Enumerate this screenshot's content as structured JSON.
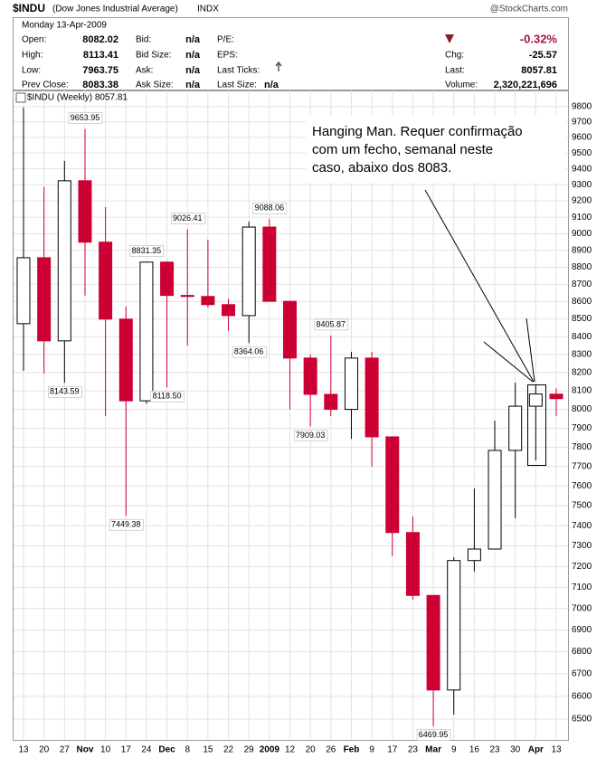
{
  "header": {
    "symbol": "$INDU",
    "name": "(Dow Jones Industrial Average)",
    "exchange": "INDX",
    "source": "@StockCharts.com",
    "date": "Monday  13-Apr-2009",
    "columns": [
      [
        {
          "label": "Open:",
          "value": "8082.02"
        },
        {
          "label": "High:",
          "value": "8113.41"
        },
        {
          "label": "Low:",
          "value": "7963.75"
        },
        {
          "label": "Prev Close:",
          "value": "8083.38"
        }
      ],
      [
        {
          "label": "Bid:",
          "value": "n/a"
        },
        {
          "label": "Bid Size:",
          "value": "n/a"
        },
        {
          "label": "Ask:",
          "value": "n/a"
        },
        {
          "label": "Ask Size:",
          "value": "n/a"
        }
      ],
      [
        {
          "label": "P/E:"
        },
        {
          "label": "EPS:"
        },
        {
          "label": "Last Ticks:"
        },
        {
          "label": "Last Size:",
          "value": "n/a"
        }
      ],
      [
        {
          "value": "-0.32%"
        },
        {
          "label": "Chg:",
          "value": "-25.57"
        },
        {
          "label": "Last:",
          "value": "8057.81"
        },
        {
          "label": "Volume:",
          "value": "2,320,221,696"
        }
      ]
    ]
  },
  "chart_data": {
    "type": "candlestick",
    "legend": "$INDU (Weekly) 8057.81",
    "annotation": [
      "Hanging Man. Requer confirmação",
      "com um fecho, semanal neste",
      "caso, abaixo dos 8083."
    ],
    "categories": [
      "13",
      "20",
      "27",
      "Nov",
      "10",
      "17",
      "24",
      "Dec",
      "8",
      "15",
      "22",
      "29",
      "2009",
      "12",
      "20",
      "26",
      "Feb",
      "9",
      "17",
      "23",
      "Mar",
      "9",
      "16",
      "23",
      "30",
      "Apr",
      "13"
    ],
    "open": [
      8473,
      8856,
      8376,
      9325,
      8949,
      8499,
      8046,
      8830,
      8635,
      8629,
      8582,
      8519,
      9040,
      8601,
      8280,
      8081,
      8000,
      8280,
      7854,
      7366,
      7062,
      6628,
      7229,
      7285,
      7783,
      8017,
      8082.02
    ],
    "high": [
      9794,
      9286,
      9450,
      9653.95,
      9162,
      8571,
      8831.35,
      8835,
      9026.41,
      8964,
      8616,
      9074,
      9088.06,
      8601,
      8300,
      8405.87,
      8315,
      8315,
      7854,
      7446,
      7062,
      7245,
      7587,
      7940,
      8145,
      8131,
      8113.41
    ],
    "low": [
      8209,
      8195,
      8143.59,
      8634,
      7964,
      7449.38,
      8030,
      8118.5,
      8350,
      8565,
      8432,
      8364.06,
      8601,
      7999,
      7909.03,
      7964,
      7844,
      7699,
      7251,
      7042,
      6469.95,
      6520,
      7176,
      7285,
      7437,
      7731,
      7963.75
    ],
    "close": [
      8856,
      8376,
      9325,
      8949,
      8499,
      8046,
      8830,
      8635,
      8629,
      8582,
      8519,
      9040,
      8601,
      8280,
      8081,
      8000,
      8280,
      7854,
      7366,
      7062,
      6628,
      7229,
      7285,
      7783,
      8017,
      8083,
      8057.81
    ],
    "high_labels": [
      null,
      null,
      null,
      "9653.95",
      null,
      null,
      "8831.35",
      null,
      "9026.41",
      null,
      null,
      null,
      "9088.06",
      null,
      null,
      "8405.87",
      null,
      null,
      null,
      null,
      null,
      null,
      null,
      null,
      null,
      null,
      null
    ],
    "low_labels": [
      null,
      null,
      "8143.59",
      null,
      null,
      "7449.38",
      null,
      "8118.50",
      null,
      null,
      null,
      "8364.06",
      null,
      null,
      "7909.03",
      null,
      null,
      null,
      null,
      null,
      "6469.95",
      null,
      null,
      null,
      null,
      null,
      null
    ],
    "up_color": "#ffffff",
    "down_color": "#cc0033",
    "log_scale": true,
    "grid": true,
    "ylim": [
      6410,
      9907
    ],
    "yticks": [
      6500,
      6600,
      6700,
      6800,
      6900,
      7000,
      7100,
      7200,
      7300,
      7400,
      7500,
      7600,
      7700,
      7800,
      7900,
      8000,
      8100,
      8200,
      8300,
      8400,
      8500,
      8600,
      8700,
      8800,
      8900,
      9000,
      9100,
      9200,
      9300,
      9400,
      9500,
      9600,
      9700,
      9800
    ]
  }
}
